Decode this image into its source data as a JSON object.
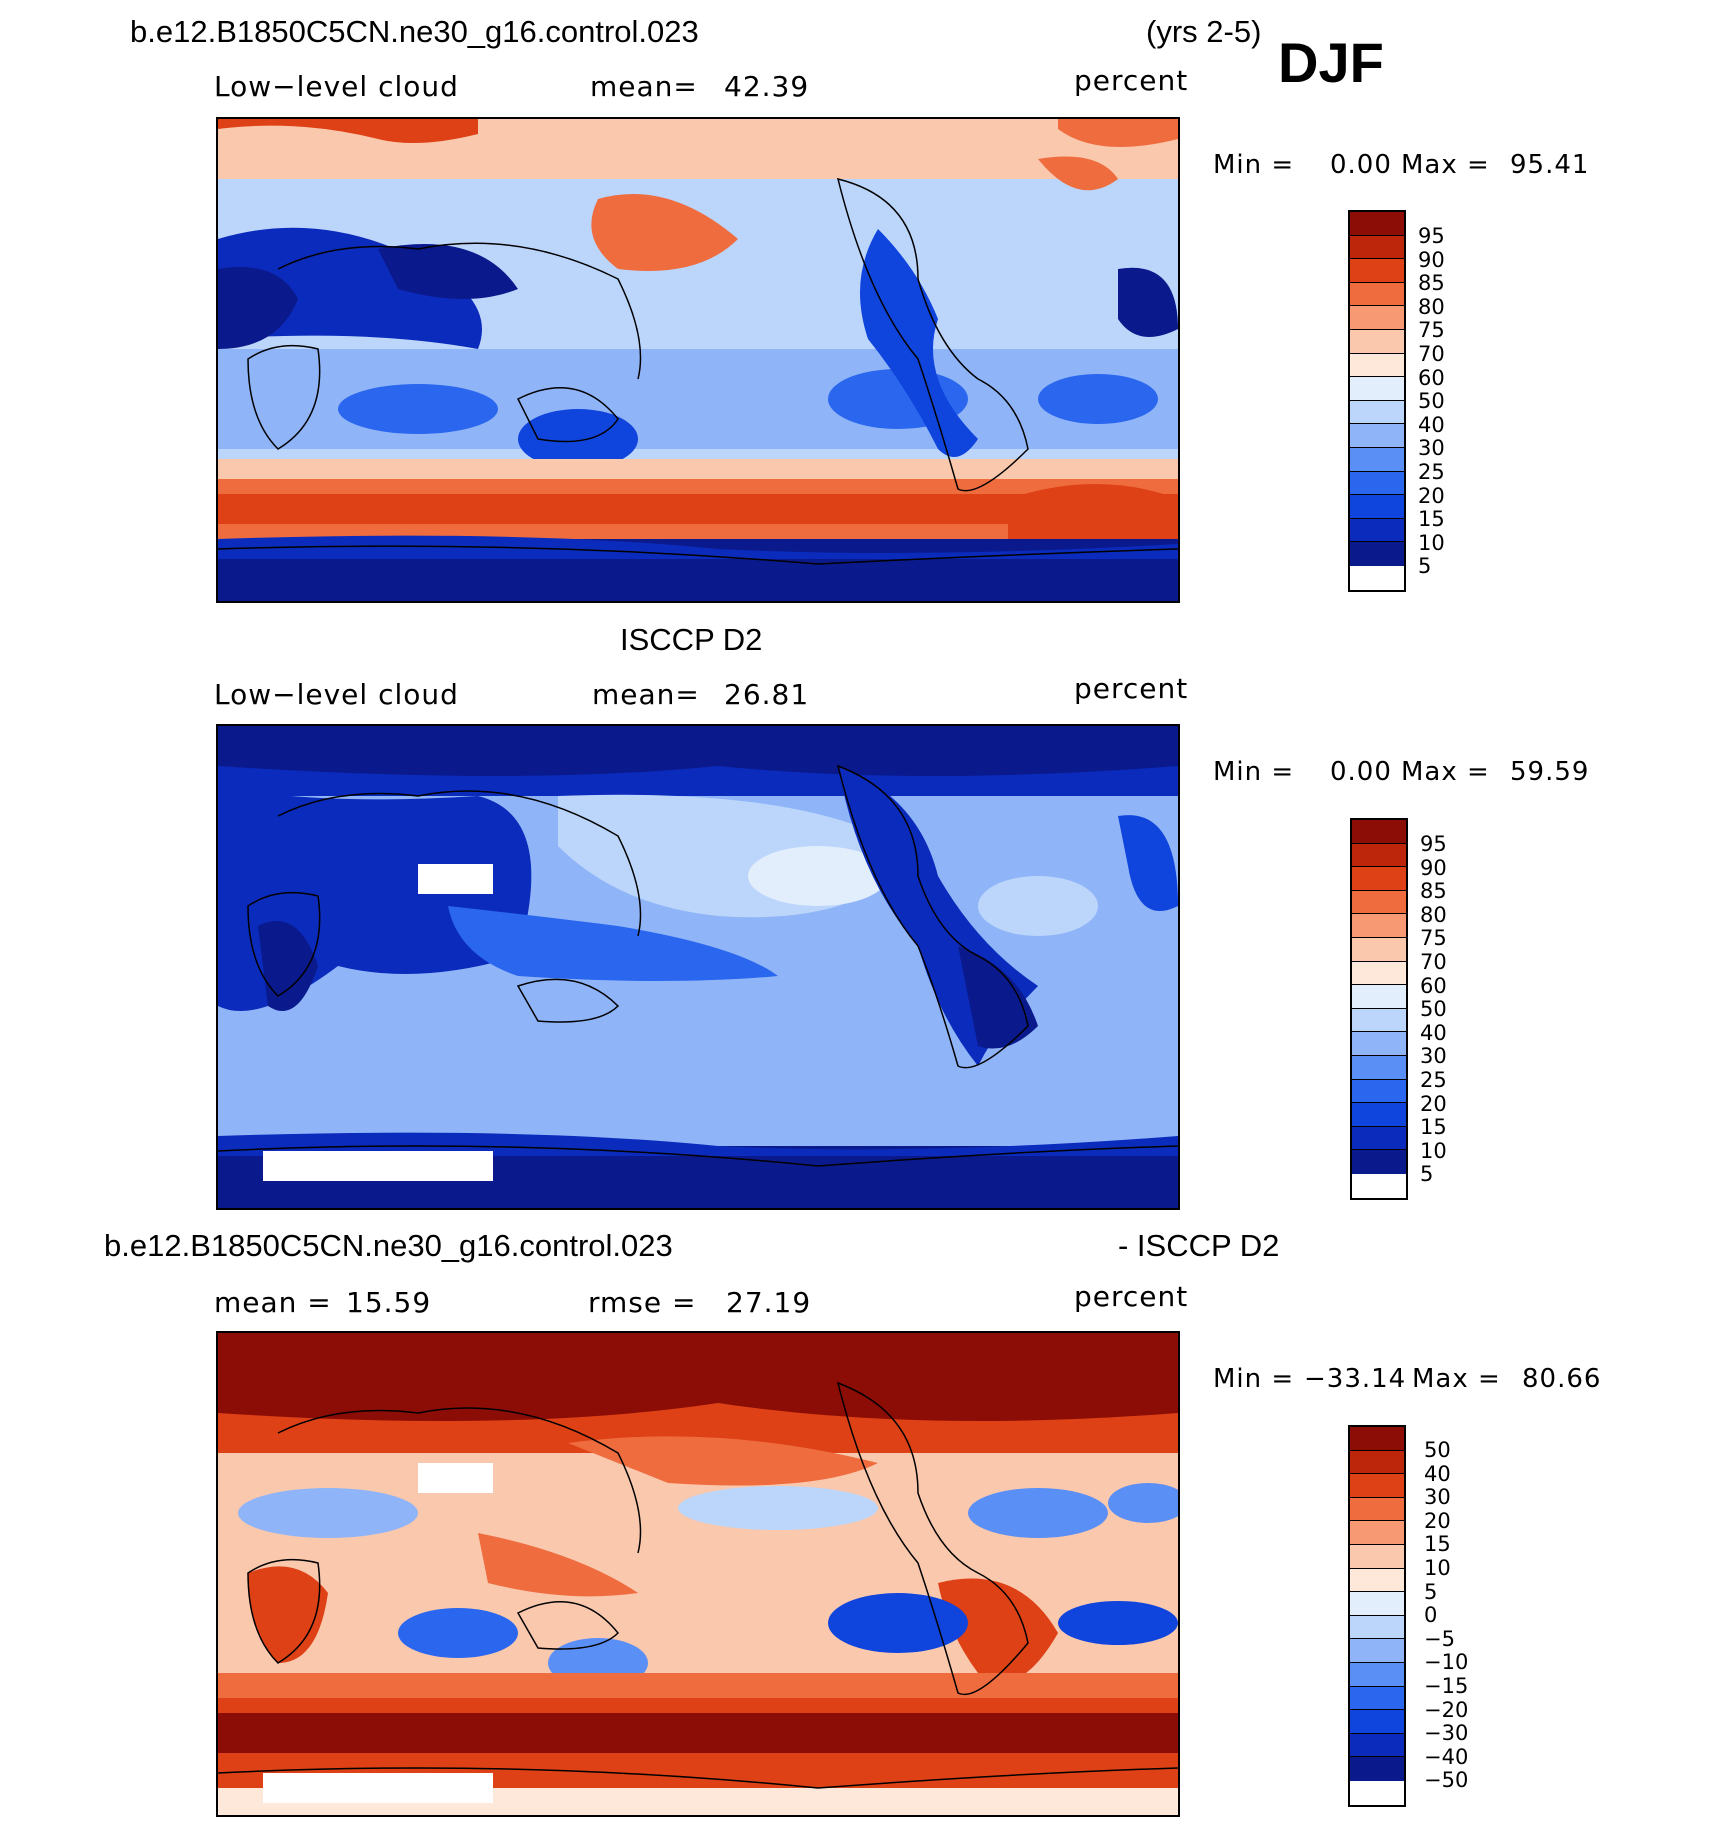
{
  "header": {
    "case_name": "b.e12.B1850C5CN.ne30_g16.control.023",
    "years": "(yrs 2-5)",
    "season": "DJF"
  },
  "panel1": {
    "variable": "Low−level cloud",
    "mean_label": "mean=",
    "mean_value": "42.39",
    "units": "percent",
    "min_label": "Min =",
    "min_value": "0.00",
    "max_label": "Max =",
    "max_value": "95.41",
    "colorbar_labels": [
      "95",
      "90",
      "85",
      "80",
      "75",
      "70",
      "60",
      "50",
      "40",
      "30",
      "25",
      "20",
      "15",
      "10",
      "5"
    ]
  },
  "panel2": {
    "title": "ISCCP D2",
    "variable": "Low−level cloud",
    "mean_label": "mean=",
    "mean_value": "26.81",
    "units": "percent",
    "min_label": "Min =",
    "min_value": "0.00",
    "max_label": "Max =",
    "max_value": "59.59",
    "colorbar_labels": [
      "95",
      "90",
      "85",
      "80",
      "75",
      "70",
      "60",
      "50",
      "40",
      "30",
      "25",
      "20",
      "15",
      "10",
      "5"
    ]
  },
  "panel3": {
    "title_left": "b.e12.B1850C5CN.ne30_g16.control.023",
    "title_right": "- ISCCP D2",
    "mean_label": "mean =",
    "mean_value": "15.59",
    "rmse_label": "rmse =",
    "rmse_value": "27.19",
    "units": "percent",
    "min_label": "Min =",
    "min_value": "−33.14",
    "max_label": "Max =",
    "max_value": "80.66",
    "colorbar_labels": [
      "50",
      "40",
      "30",
      "20",
      "15",
      "10",
      "5",
      "0",
      "−5",
      "−10",
      "−15",
      "−20",
      "−30",
      "−40",
      "−50"
    ]
  },
  "colors": {
    "scale": [
      "#0a1a8c",
      "#0b2bbd",
      "#0f44dd",
      "#2a66ee",
      "#5a8ff5",
      "#8fb5f8",
      "#bcd6fb",
      "#e2eefc",
      "#fde8da",
      "#fac8ad",
      "#f79a73",
      "#ef6c3f",
      "#de4116",
      "#bd260b",
      "#8c0d05"
    ]
  }
}
